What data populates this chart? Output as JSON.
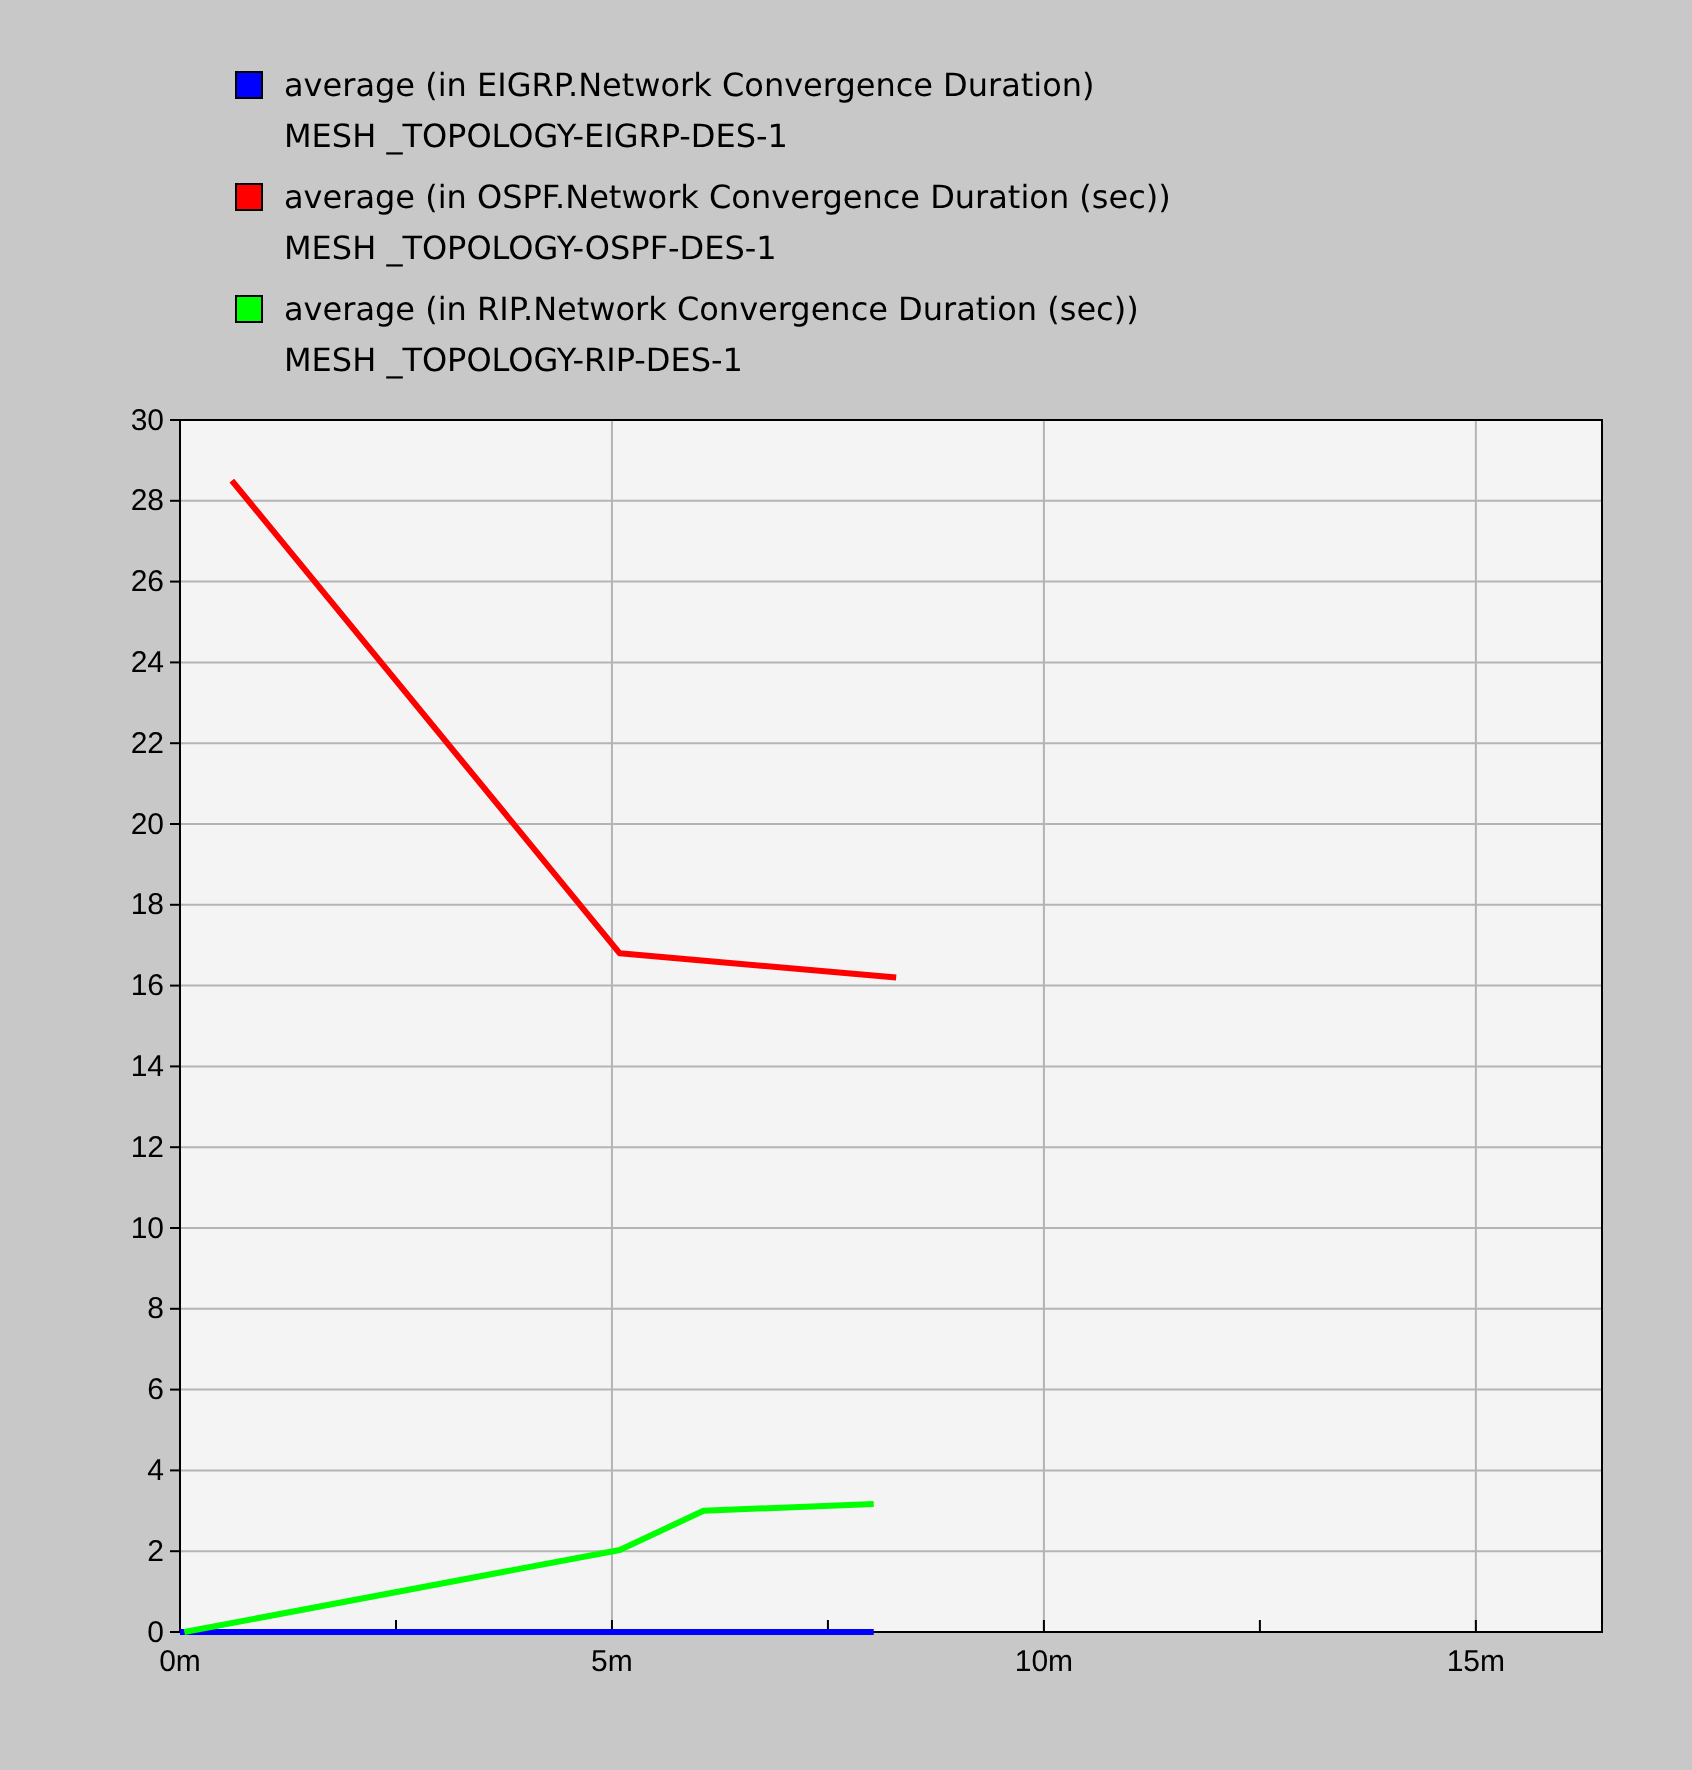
{
  "chart_data": {
    "type": "line",
    "series": [
      {
        "name": "average (in EIGRP.Network Convergence Duration)\nMESH _TOPOLOGY-EIGRP-DES-1",
        "color": "#0000ff",
        "x": [
          0,
          8.03
        ],
        "values": [
          0,
          0
        ]
      },
      {
        "name": "average (in OSPF.Network Convergence Duration (sec))\nMESH _TOPOLOGY-OSPF-DES-1",
        "color": "#ff0000",
        "x": [
          0.6,
          5.09,
          8.29
        ],
        "values": [
          28.5,
          16.8,
          16.2
        ]
      },
      {
        "name": "average (in RIP.Network Convergence Duration (sec))\nMESH _TOPOLOGY-RIP-DES-1",
        "color": "#00ff00",
        "x": [
          0.05,
          5.09,
          6.06,
          8.03
        ],
        "values": [
          0,
          2.03,
          3.0,
          3.17
        ]
      }
    ],
    "xlim": [
      0,
      16.46
    ],
    "xticks": [
      {
        "value": 0,
        "label": "0m"
      },
      {
        "value": 2.5,
        "label": null
      },
      {
        "value": 5,
        "label": "5m"
      },
      {
        "value": 7.5,
        "label": null
      },
      {
        "value": 10,
        "label": "10m"
      },
      {
        "value": 12.5,
        "label": null
      },
      {
        "value": 15,
        "label": "15m"
      }
    ],
    "ylim": [
      0,
      30
    ],
    "yticks": [
      0,
      2,
      4,
      6,
      8,
      10,
      12,
      14,
      16,
      18,
      20,
      22,
      24,
      26,
      28,
      30
    ],
    "grid": true,
    "legend": "top left",
    "marker": "none",
    "line_style": "solid"
  }
}
